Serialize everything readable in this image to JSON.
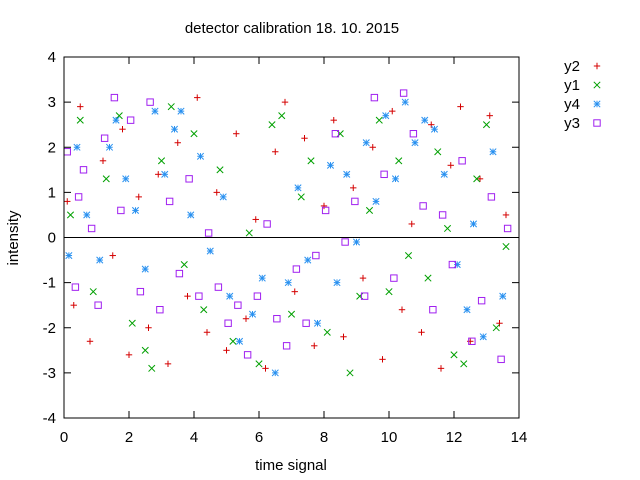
{
  "chart_data": {
    "type": "scatter",
    "title": "detector calibration 18. 10. 2015",
    "xlabel": "time signal",
    "ylabel": "intensity",
    "xlim": [
      0,
      14
    ],
    "ylim": [
      -4,
      4
    ],
    "xticks": [
      0,
      2,
      4,
      6,
      8,
      10,
      12,
      14
    ],
    "yticks": [
      -4,
      -3,
      -2,
      -1,
      0,
      1,
      2,
      3,
      4
    ],
    "zero_line": true,
    "grid": false,
    "legend_position": "outside-right",
    "series": [
      {
        "name": "y2",
        "color": "#d40000",
        "marker": "plus",
        "points": [
          [
            0.1,
            0.8
          ],
          [
            0.3,
            -1.5
          ],
          [
            0.5,
            2.9
          ],
          [
            0.8,
            -2.3
          ],
          [
            1.2,
            1.7
          ],
          [
            1.5,
            -0.4
          ],
          [
            1.8,
            2.4
          ],
          [
            2.0,
            -2.6
          ],
          [
            2.3,
            0.9
          ],
          [
            2.6,
            -2.0
          ],
          [
            2.9,
            1.4
          ],
          [
            3.2,
            -2.8
          ],
          [
            3.5,
            2.1
          ],
          [
            3.8,
            -1.3
          ],
          [
            4.1,
            3.1
          ],
          [
            4.4,
            -2.1
          ],
          [
            4.7,
            1.0
          ],
          [
            5.0,
            -2.5
          ],
          [
            5.3,
            2.3
          ],
          [
            5.6,
            -1.8
          ],
          [
            5.9,
            0.4
          ],
          [
            6.2,
            -2.9
          ],
          [
            6.5,
            1.9
          ],
          [
            6.8,
            3.0
          ],
          [
            7.1,
            -1.2
          ],
          [
            7.4,
            2.2
          ],
          [
            7.7,
            -2.4
          ],
          [
            8.0,
            0.7
          ],
          [
            8.3,
            2.6
          ],
          [
            8.6,
            -2.2
          ],
          [
            8.9,
            1.1
          ],
          [
            9.2,
            -0.9
          ],
          [
            9.5,
            2.0
          ],
          [
            9.8,
            -2.7
          ],
          [
            10.1,
            2.8
          ],
          [
            10.4,
            -1.6
          ],
          [
            10.7,
            0.3
          ],
          [
            11.0,
            -2.1
          ],
          [
            11.3,
            2.5
          ],
          [
            11.6,
            -2.9
          ],
          [
            11.9,
            1.6
          ],
          [
            12.2,
            2.9
          ],
          [
            12.5,
            -2.3
          ],
          [
            12.8,
            1.3
          ],
          [
            13.1,
            2.7
          ],
          [
            13.4,
            -1.9
          ],
          [
            13.6,
            0.5
          ]
        ]
      },
      {
        "name": "y1",
        "color": "#00a000",
        "marker": "cross",
        "points": [
          [
            0.2,
            0.5
          ],
          [
            0.5,
            2.6
          ],
          [
            0.9,
            -1.2
          ],
          [
            1.3,
            1.3
          ],
          [
            1.7,
            2.7
          ],
          [
            2.1,
            -1.9
          ],
          [
            2.5,
            -2.5
          ],
          [
            2.7,
            -2.9
          ],
          [
            3.0,
            1.7
          ],
          [
            3.3,
            2.9
          ],
          [
            3.7,
            -0.6
          ],
          [
            4.0,
            2.3
          ],
          [
            4.3,
            -1.6
          ],
          [
            4.8,
            1.5
          ],
          [
            5.2,
            -2.3
          ],
          [
            5.7,
            0.1
          ],
          [
            6.0,
            -2.8
          ],
          [
            6.4,
            2.5
          ],
          [
            6.7,
            2.7
          ],
          [
            7.0,
            -1.7
          ],
          [
            7.3,
            0.9
          ],
          [
            7.6,
            1.7
          ],
          [
            8.1,
            -2.1
          ],
          [
            8.5,
            2.3
          ],
          [
            8.8,
            -3.0
          ],
          [
            9.1,
            -1.3
          ],
          [
            9.4,
            0.6
          ],
          [
            9.7,
            2.6
          ],
          [
            10.0,
            -1.2
          ],
          [
            10.3,
            1.7
          ],
          [
            10.6,
            -0.4
          ],
          [
            11.2,
            -0.9
          ],
          [
            11.5,
            1.9
          ],
          [
            11.8,
            0.2
          ],
          [
            12.0,
            -2.6
          ],
          [
            12.3,
            -2.8
          ],
          [
            12.7,
            1.3
          ],
          [
            13.0,
            2.5
          ],
          [
            13.3,
            -2.0
          ],
          [
            13.6,
            -0.2
          ]
        ]
      },
      {
        "name": "y4",
        "color": "#2890f0",
        "marker": "star",
        "points": [
          [
            0.15,
            -0.4
          ],
          [
            0.4,
            2.0
          ],
          [
            0.7,
            0.5
          ],
          [
            1.1,
            -0.5
          ],
          [
            1.4,
            2.0
          ],
          [
            1.6,
            2.6
          ],
          [
            1.9,
            1.3
          ],
          [
            2.2,
            0.6
          ],
          [
            2.5,
            -0.7
          ],
          [
            2.8,
            2.8
          ],
          [
            3.1,
            1.4
          ],
          [
            3.4,
            2.4
          ],
          [
            3.6,
            2.8
          ],
          [
            3.9,
            0.5
          ],
          [
            4.2,
            1.8
          ],
          [
            4.5,
            -0.3
          ],
          [
            4.9,
            0.9
          ],
          [
            5.1,
            -1.3
          ],
          [
            5.4,
            -2.3
          ],
          [
            5.8,
            -1.7
          ],
          [
            6.1,
            -0.9
          ],
          [
            6.5,
            -3.0
          ],
          [
            6.9,
            -1.0
          ],
          [
            7.2,
            1.1
          ],
          [
            7.5,
            -0.5
          ],
          [
            7.8,
            -1.9
          ],
          [
            8.2,
            1.6
          ],
          [
            8.4,
            -1.0
          ],
          [
            8.7,
            1.4
          ],
          [
            9.0,
            -0.1
          ],
          [
            9.3,
            2.1
          ],
          [
            9.6,
            0.8
          ],
          [
            9.9,
            2.7
          ],
          [
            10.2,
            1.3
          ],
          [
            10.5,
            3.0
          ],
          [
            10.8,
            2.1
          ],
          [
            11.1,
            2.6
          ],
          [
            11.4,
            2.4
          ],
          [
            11.7,
            1.4
          ],
          [
            12.1,
            -0.6
          ],
          [
            12.4,
            -1.6
          ],
          [
            12.6,
            0.3
          ],
          [
            12.9,
            -2.2
          ],
          [
            13.2,
            1.9
          ],
          [
            13.5,
            -1.3
          ]
        ]
      },
      {
        "name": "y3",
        "color": "#a020f0",
        "marker": "square",
        "points": [
          [
            0.1,
            1.9
          ],
          [
            0.35,
            -1.1
          ],
          [
            0.45,
            0.9
          ],
          [
            0.6,
            1.5
          ],
          [
            0.85,
            0.2
          ],
          [
            1.05,
            -1.5
          ],
          [
            1.25,
            2.2
          ],
          [
            1.55,
            3.1
          ],
          [
            1.75,
            0.6
          ],
          [
            2.05,
            2.6
          ],
          [
            2.35,
            -1.2
          ],
          [
            2.65,
            3.0
          ],
          [
            2.95,
            -1.6
          ],
          [
            3.25,
            0.8
          ],
          [
            3.55,
            -0.8
          ],
          [
            3.85,
            1.3
          ],
          [
            4.15,
            -1.3
          ],
          [
            4.45,
            0.1
          ],
          [
            4.75,
            -1.1
          ],
          [
            5.05,
            -1.9
          ],
          [
            5.35,
            -1.5
          ],
          [
            5.65,
            -2.6
          ],
          [
            5.95,
            -1.3
          ],
          [
            6.25,
            0.3
          ],
          [
            6.55,
            -1.8
          ],
          [
            6.85,
            -2.4
          ],
          [
            7.15,
            -0.7
          ],
          [
            7.45,
            -1.9
          ],
          [
            7.75,
            -0.4
          ],
          [
            8.05,
            0.6
          ],
          [
            8.35,
            2.3
          ],
          [
            8.65,
            -0.1
          ],
          [
            8.95,
            0.8
          ],
          [
            9.25,
            -1.3
          ],
          [
            9.55,
            3.1
          ],
          [
            9.85,
            1.4
          ],
          [
            10.15,
            -0.9
          ],
          [
            10.45,
            3.2
          ],
          [
            10.75,
            2.3
          ],
          [
            11.05,
            0.7
          ],
          [
            11.35,
            -1.6
          ],
          [
            11.65,
            0.5
          ],
          [
            11.95,
            -0.6
          ],
          [
            12.25,
            1.7
          ],
          [
            12.55,
            -2.3
          ],
          [
            12.85,
            -1.4
          ],
          [
            13.15,
            0.9
          ],
          [
            13.45,
            -2.7
          ],
          [
            13.65,
            0.2
          ]
        ]
      }
    ]
  }
}
